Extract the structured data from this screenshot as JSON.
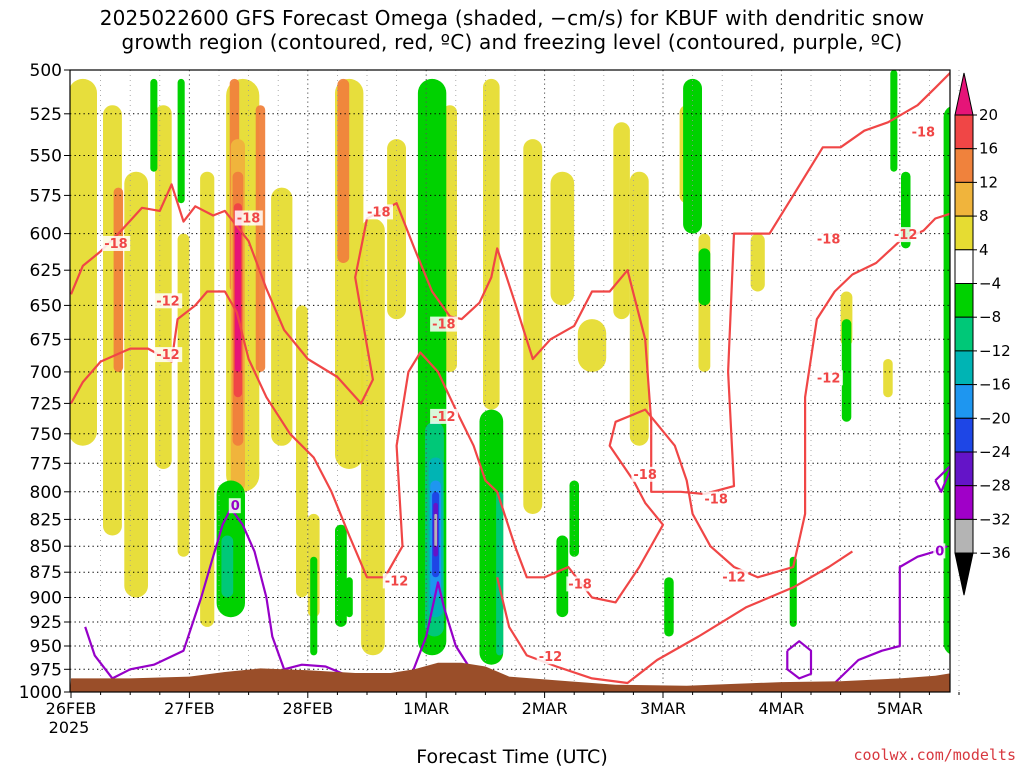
{
  "title_line1": "2025022600 GFS Forecast Omega (shaded, −cm/s) for KBUF with dendritic snow",
  "title_line2": "growth region (contoured, red, ºC) and freezing level (contoured, purple, ºC)",
  "xlabel": "Forecast Time (UTC)",
  "credit": "coolwx.com/modelts",
  "chart_data": {
    "type": "heatmap",
    "title": "2025022600 GFS Forecast Omega (shaded, −cm/s) for KBUF with dendritic snow growth region (contoured, red, ºC) and freezing level (contoured, purple, ºC)",
    "xlabel": "Forecast Time (UTC)",
    "ylabel": "",
    "y_scale": "pressure (log)",
    "ylim": [
      1000,
      500
    ],
    "y_ticks": [
      500,
      525,
      550,
      575,
      600,
      625,
      650,
      675,
      700,
      725,
      750,
      775,
      800,
      825,
      850,
      875,
      900,
      925,
      950,
      975,
      1000
    ],
    "x_ticks": [
      {
        "day": 0,
        "label": "26FEB",
        "sub": "2025"
      },
      {
        "day": 1,
        "label": "27FEB",
        "sub": ""
      },
      {
        "day": 2,
        "label": "28FEB",
        "sub": ""
      },
      {
        "day": 3,
        "label": "1MAR",
        "sub": ""
      },
      {
        "day": 4,
        "label": "2MAR",
        "sub": ""
      },
      {
        "day": 5,
        "label": "3MAR",
        "sub": ""
      },
      {
        "day": 6,
        "label": "4MAR",
        "sub": ""
      },
      {
        "day": 7,
        "label": "5MAR",
        "sub": ""
      }
    ],
    "xlim_days": [
      0,
      7.6
    ],
    "grid": true,
    "colorbar": {
      "labels": [
        "20",
        "16",
        "12",
        "8",
        "4",
        "−4",
        "−8",
        "−12",
        "−16",
        "−20",
        "−24",
        "−28",
        "−32",
        "−36"
      ],
      "colors": [
        "#e61478",
        "#f04646",
        "#f0823c",
        "#f0b43c",
        "#e6dc32",
        "#ffffff",
        "#00d200",
        "#00c878",
        "#00b4b4",
        "#1e96f0",
        "#1e46e6",
        "#6414c8",
        "#a000c8",
        "#b4b4b4",
        "#000000"
      ],
      "top_color": "#e61478",
      "bottom_color": "#000000"
    },
    "contours": {
      "dgz_color": "#f04646",
      "freezing_color": "#9600c8",
      "labels": [
        {
          "text": "-18",
          "day": 0.28,
          "p": 607
        },
        {
          "text": "-12",
          "day": 0.72,
          "p": 687
        },
        {
          "text": "-12",
          "day": 0.72,
          "p": 647
        },
        {
          "text": "-18",
          "day": 1.4,
          "p": 590
        },
        {
          "text": "-18",
          "day": 2.5,
          "p": 586
        },
        {
          "text": "-18",
          "day": 3.05,
          "p": 664
        },
        {
          "text": "-12",
          "day": 3.05,
          "p": 736
        },
        {
          "text": "-12",
          "day": 2.65,
          "p": 884
        },
        {
          "text": "-18",
          "day": 4.2,
          "p": 887
        },
        {
          "text": "-12",
          "day": 3.95,
          "p": 962
        },
        {
          "text": "-18",
          "day": 4.75,
          "p": 785
        },
        {
          "text": "-18",
          "day": 5.35,
          "p": 807
        },
        {
          "text": "-12",
          "day": 5.5,
          "p": 880
        },
        {
          "text": "-12",
          "day": 6.3,
          "p": 705
        },
        {
          "text": "-18",
          "day": 6.3,
          "p": 604
        },
        {
          "text": "-12",
          "day": 6.95,
          "p": 601
        },
        {
          "text": "-18",
          "day": 7.1,
          "p": 536
        },
        {
          "text": "0",
          "day": 1.35,
          "p": 813
        },
        {
          "text": "0",
          "day": 7.3,
          "p": 855
        }
      ]
    }
  }
}
